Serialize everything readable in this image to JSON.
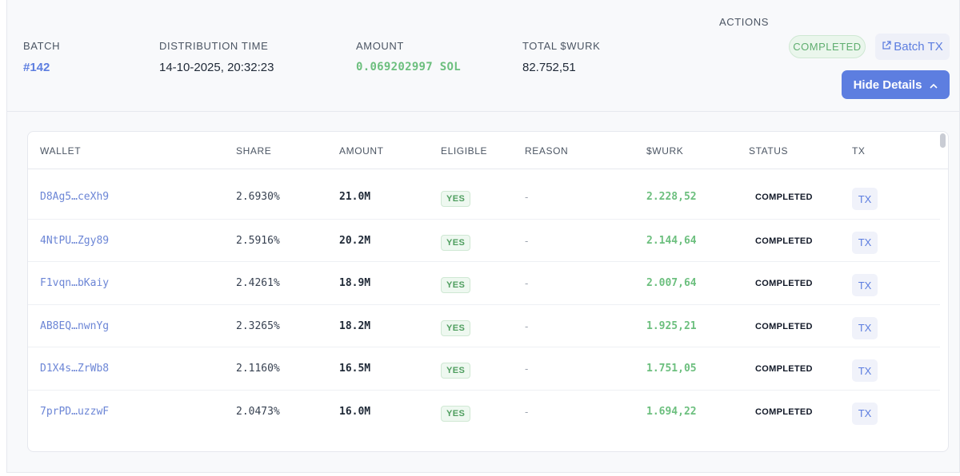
{
  "header": {
    "batch_label": "BATCH",
    "batch_value": "#142",
    "distribution_time_label": "DISTRIBUTION TIME",
    "distribution_time_value": "14-10-2025, 20:32:23",
    "amount_label": "AMOUNT",
    "amount_value": "0.069202997 SOL",
    "total_label": "TOTAL $WURK",
    "total_value": "82.752,51",
    "actions_label": "ACTIONS",
    "status_badge": "COMPLETED",
    "batch_tx_button": "Batch TX",
    "hide_details_button": "Hide Details"
  },
  "table": {
    "columns": [
      "WALLET",
      "SHARE",
      "AMOUNT",
      "ELIGIBLE",
      "REASON",
      "$WURK",
      "STATUS",
      "TX"
    ],
    "rows": [
      {
        "wallet": "D8Ag5…ceXh9",
        "share": "2.6930%",
        "amount": "21.0M",
        "eligible": "YES",
        "reason": "-",
        "wurk": "2.228,52",
        "status": "COMPLETED",
        "tx": "TX"
      },
      {
        "wallet": "4NtPU…Zgy89",
        "share": "2.5916%",
        "amount": "20.2M",
        "eligible": "YES",
        "reason": "-",
        "wurk": "2.144,64",
        "status": "COMPLETED",
        "tx": "TX"
      },
      {
        "wallet": "F1vqn…bKaiy",
        "share": "2.4261%",
        "amount": "18.9M",
        "eligible": "YES",
        "reason": "-",
        "wurk": "2.007,64",
        "status": "COMPLETED",
        "tx": "TX"
      },
      {
        "wallet": "AB8EQ…nwnYg",
        "share": "2.3265%",
        "amount": "18.2M",
        "eligible": "YES",
        "reason": "-",
        "wurk": "1.925,21",
        "status": "COMPLETED",
        "tx": "TX"
      },
      {
        "wallet": "D1X4s…ZrWb8",
        "share": "2.1160%",
        "amount": "16.5M",
        "eligible": "YES",
        "reason": "-",
        "wurk": "1.751,05",
        "status": "COMPLETED",
        "tx": "TX"
      },
      {
        "wallet": "7prPD…uzzwF",
        "share": "2.0473%",
        "amount": "16.0M",
        "eligible": "YES",
        "reason": "-",
        "wurk": "1.694,22",
        "status": "COMPLETED",
        "tx": "TX"
      }
    ]
  },
  "icons": {
    "external_link": "external-link-icon",
    "chevron_up": "chevron-up-icon"
  },
  "colors": {
    "accent": "#5d7ee0",
    "success": "#6cbf7e"
  }
}
